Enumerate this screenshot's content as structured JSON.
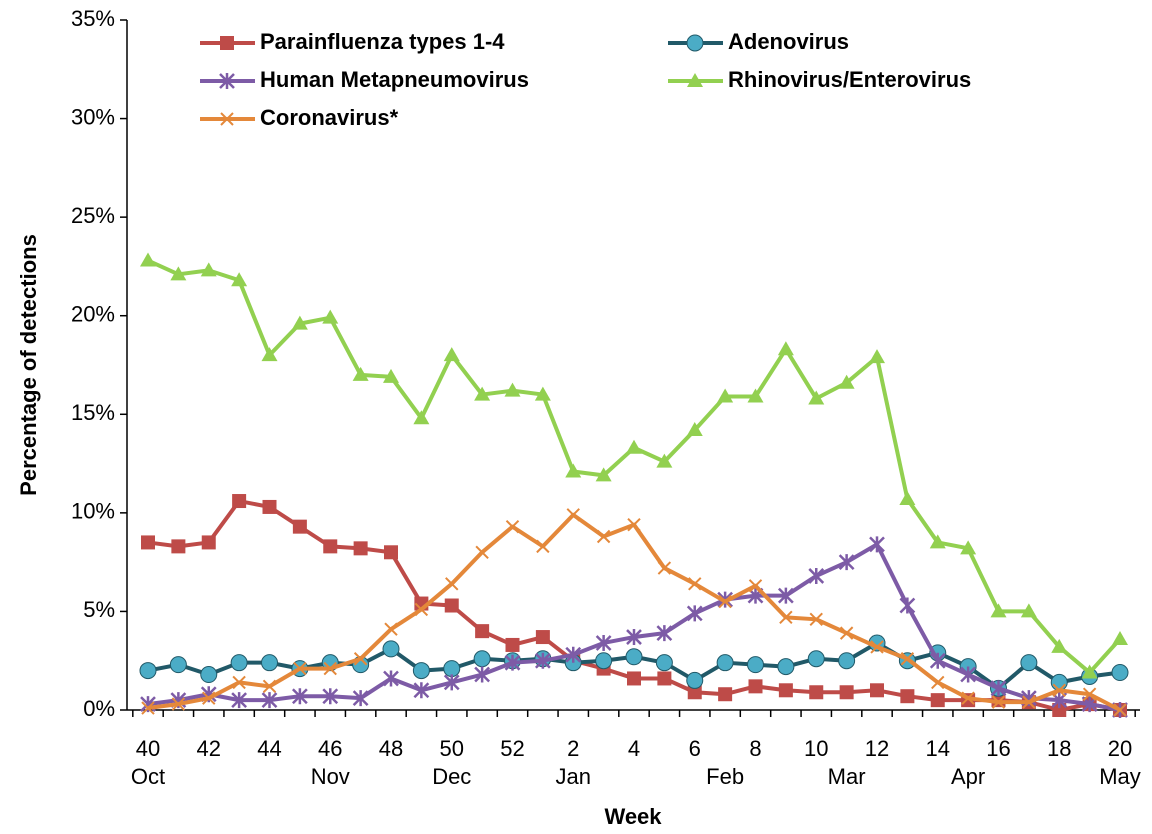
{
  "chart_data": {
    "type": "line",
    "y_axis_label": "Percentage of detections",
    "x_axis_label": "Week",
    "categories": [
      "40",
      null,
      "42",
      null,
      "44",
      null,
      "46",
      null,
      "48",
      null,
      "50",
      null,
      "52",
      null,
      "2",
      null,
      "4",
      null,
      "6",
      null,
      "8",
      null,
      "10",
      null,
      "12",
      null,
      "14",
      null,
      "16",
      null,
      "18",
      null,
      "20"
    ],
    "month_labels": [
      "Oct",
      null,
      null,
      null,
      null,
      null,
      "Nov",
      null,
      null,
      null,
      "Dec",
      null,
      null,
      null,
      "Jan",
      null,
      null,
      null,
      null,
      "Feb",
      null,
      null,
      null,
      "Mar",
      null,
      null,
      null,
      "Apr",
      null,
      null,
      null,
      null,
      "May"
    ],
    "ylim": [
      0,
      35
    ],
    "yticks": [
      {
        "value": 0,
        "label": "0%"
      },
      {
        "value": 5,
        "label": "5%"
      },
      {
        "value": 10,
        "label": "10%"
      },
      {
        "value": 15,
        "label": "15%"
      },
      {
        "value": 20,
        "label": "20%"
      },
      {
        "value": 25,
        "label": "25%"
      },
      {
        "value": 30,
        "label": "30%"
      },
      {
        "value": 35,
        "label": "35%"
      }
    ],
    "grid": false,
    "legend_position": "top",
    "series": [
      {
        "name": "Parainfluenza types 1-4",
        "color": "#be4b48",
        "marker": "square",
        "values": [
          8.5,
          8.3,
          8.5,
          10.6,
          10.3,
          9.3,
          8.3,
          8.2,
          8.0,
          5.4,
          5.3,
          4.0,
          3.3,
          3.7,
          2.5,
          2.1,
          1.6,
          1.6,
          0.9,
          0.8,
          1.2,
          1.0,
          0.9,
          0.9,
          1.0,
          0.7,
          0.5,
          0.5,
          0.5,
          0.4,
          0.0,
          0.3,
          0.0
        ]
      },
      {
        "name": "Adenovirus",
        "color": "#215968",
        "marker_color": "#4bacc6",
        "marker": "circle",
        "values": [
          2.0,
          2.3,
          1.8,
          2.4,
          2.4,
          2.1,
          2.4,
          2.3,
          3.1,
          2.0,
          2.1,
          2.6,
          2.5,
          2.6,
          2.4,
          2.5,
          2.7,
          2.4,
          1.5,
          2.4,
          2.3,
          2.2,
          2.6,
          2.5,
          3.4,
          2.5,
          2.9,
          2.2,
          1.1,
          2.4,
          1.4,
          1.7,
          1.9
        ]
      },
      {
        "name": "Human Metapneumovirus",
        "color": "#7d5ba6",
        "marker": "asterisk",
        "values": [
          0.3,
          0.5,
          0.8,
          0.5,
          0.5,
          0.7,
          0.7,
          0.6,
          1.6,
          1.0,
          1.4,
          1.8,
          2.4,
          2.5,
          2.8,
          3.4,
          3.7,
          3.9,
          4.9,
          5.6,
          5.8,
          5.8,
          6.8,
          7.5,
          8.4,
          5.3,
          2.5,
          1.8,
          1.1,
          0.6,
          0.5,
          0.3,
          0.0
        ]
      },
      {
        "name": "Rhinovirus/Enterovirus",
        "color": "#92d050",
        "marker": "triangle",
        "values": [
          22.8,
          22.1,
          22.3,
          21.8,
          18.0,
          19.6,
          19.9,
          17.0,
          16.9,
          14.8,
          18.0,
          16.0,
          16.2,
          16.0,
          12.1,
          11.9,
          13.3,
          12.6,
          14.2,
          15.9,
          15.9,
          18.3,
          15.8,
          16.6,
          17.9,
          10.7,
          8.5,
          8.2,
          5.0,
          5.0,
          3.2,
          1.9,
          3.6
        ]
      },
      {
        "name": "Coronavirus*",
        "color": "#e4883a",
        "marker": "x",
        "values": [
          0.1,
          0.3,
          0.6,
          1.4,
          1.2,
          2.1,
          2.1,
          2.6,
          4.1,
          5.1,
          6.4,
          8.0,
          9.3,
          8.3,
          9.9,
          8.8,
          9.4,
          7.2,
          6.4,
          5.5,
          6.3,
          4.7,
          4.6,
          3.9,
          3.2,
          2.6,
          1.4,
          0.6,
          0.4,
          0.4,
          1.0,
          0.8,
          0.0
        ]
      }
    ]
  }
}
